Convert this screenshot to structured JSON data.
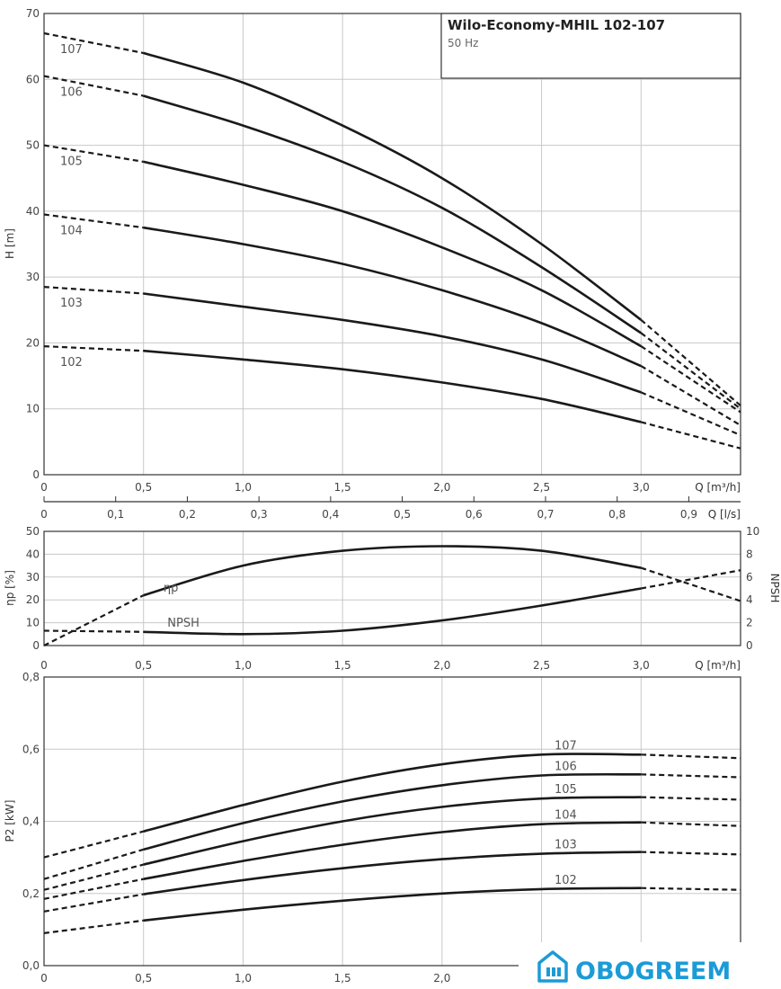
{
  "chart_data": [
    {
      "type": "line",
      "title": "Wilo-Economy-MHIL 102-107",
      "subtitle": "50 Hz",
      "ylabel": "H [m]",
      "xlabel": "Q [m³/h]",
      "xlim": [
        0,
        3.5
      ],
      "ylim": [
        0,
        70
      ],
      "x_ticks": [
        "0",
        "0,5",
        "1,0",
        "1,5",
        "2,0",
        "2,5",
        "3,0"
      ],
      "y_ticks": [
        "0",
        "10",
        "20",
        "30",
        "40",
        "50",
        "60",
        "70"
      ],
      "secondary_x": {
        "label": "Q [l/s]",
        "ticks": [
          "0",
          "0,1",
          "0,2",
          "0,3",
          "0,4",
          "0,5",
          "0,6",
          "0,7",
          "0,8",
          "0,9"
        ],
        "values": [
          0,
          0.1,
          0.2,
          0.3,
          0.4,
          0.5,
          0.6,
          0.7,
          0.8,
          0.9
        ]
      },
      "solid_range": [
        0.5,
        3.0
      ],
      "grid": true,
      "series": [
        {
          "name": "107",
          "x": [
            0,
            0.5,
            1.0,
            1.5,
            2.0,
            2.5,
            3.0,
            3.5
          ],
          "y": [
            67,
            64,
            59.5,
            53,
            45,
            35,
            23.5,
            10.5
          ]
        },
        {
          "name": "106",
          "x": [
            0,
            0.5,
            1.0,
            1.5,
            2.0,
            2.5,
            3.0,
            3.5
          ],
          "y": [
            60.5,
            57.5,
            53,
            47.5,
            40.5,
            31.5,
            21.5,
            10
          ]
        },
        {
          "name": "105",
          "x": [
            0,
            0.5,
            1.0,
            1.5,
            2.0,
            2.5,
            3.0,
            3.5
          ],
          "y": [
            50,
            47.5,
            44,
            40,
            34.5,
            28,
            19.5,
            9.5
          ]
        },
        {
          "name": "104",
          "x": [
            0,
            0.5,
            1.0,
            1.5,
            2.0,
            2.5,
            3.0,
            3.5
          ],
          "y": [
            39.5,
            37.5,
            35,
            32,
            28,
            23,
            16.5,
            7.5
          ]
        },
        {
          "name": "103",
          "x": [
            0,
            0.5,
            1.0,
            1.5,
            2.0,
            2.5,
            3.0,
            3.5
          ],
          "y": [
            28.5,
            27.5,
            25.5,
            23.5,
            21,
            17.5,
            12.5,
            6
          ]
        },
        {
          "name": "102",
          "x": [
            0,
            0.5,
            1.0,
            1.5,
            2.0,
            2.5,
            3.0,
            3.5
          ],
          "y": [
            19.5,
            18.8,
            17.5,
            16,
            14,
            11.5,
            8,
            4
          ]
        }
      ]
    },
    {
      "type": "line",
      "ylabel": "ηp [%]",
      "y2label": "NPSH",
      "xlabel": "Q [m³/h]",
      "xlim": [
        0,
        3.5
      ],
      "ylim": [
        0,
        50
      ],
      "y2lim": [
        0,
        10
      ],
      "x_ticks": [
        "0",
        "0,5",
        "1,0",
        "1,5",
        "2,0",
        "2,5",
        "3,0"
      ],
      "y_ticks": [
        "0",
        "10",
        "20",
        "30",
        "40",
        "50"
      ],
      "y2_ticks": [
        "0",
        "2",
        "4",
        "6",
        "8",
        "10"
      ],
      "solid_range": [
        0.5,
        3.0
      ],
      "grid": true,
      "series": [
        {
          "name": "ηp",
          "axis": "left",
          "x": [
            0,
            0.5,
            1.0,
            1.5,
            2.0,
            2.5,
            3.0,
            3.5
          ],
          "y": [
            0,
            22,
            35,
            41.5,
            43.5,
            41.5,
            34,
            19.5
          ]
        },
        {
          "name": "NPSH",
          "axis": "right",
          "x": [
            0,
            0.5,
            1.0,
            1.5,
            2.0,
            2.5,
            3.0,
            3.5
          ],
          "y": [
            1.3,
            1.2,
            1.0,
            1.3,
            2.2,
            3.5,
            5.0,
            6.6
          ]
        }
      ]
    },
    {
      "type": "line",
      "ylabel": "P2 [kW]",
      "xlim": [
        0,
        3.5
      ],
      "ylim": [
        0,
        0.8
      ],
      "x_ticks": [
        "0",
        "0,5",
        "1,0",
        "1,5",
        "2,0"
      ],
      "y_ticks": [
        "0,0",
        "0,2",
        "0,4",
        "0,6",
        "0,8"
      ],
      "solid_range": [
        0.5,
        3.0
      ],
      "grid": true,
      "series": [
        {
          "name": "107",
          "x": [
            0,
            0.5,
            1.0,
            1.5,
            2.0,
            2.5,
            3.0,
            3.5
          ],
          "y": [
            0.3,
            0.372,
            0.445,
            0.51,
            0.558,
            0.585,
            0.585,
            0.575
          ]
        },
        {
          "name": "106",
          "x": [
            0,
            0.5,
            1.0,
            1.5,
            2.0,
            2.5,
            3.0,
            3.5
          ],
          "y": [
            0.24,
            0.322,
            0.395,
            0.455,
            0.5,
            0.527,
            0.53,
            0.522
          ]
        },
        {
          "name": "105",
          "x": [
            0,
            0.5,
            1.0,
            1.5,
            2.0,
            2.5,
            3.0,
            3.5
          ],
          "y": [
            0.21,
            0.28,
            0.345,
            0.4,
            0.44,
            0.463,
            0.467,
            0.46
          ]
        },
        {
          "name": "104",
          "x": [
            0,
            0.5,
            1.0,
            1.5,
            2.0,
            2.5,
            3.0,
            3.5
          ],
          "y": [
            0.185,
            0.24,
            0.29,
            0.335,
            0.37,
            0.392,
            0.397,
            0.387
          ]
        },
        {
          "name": "103",
          "x": [
            0,
            0.5,
            1.0,
            1.5,
            2.0,
            2.5,
            3.0,
            3.5
          ],
          "y": [
            0.15,
            0.198,
            0.237,
            0.27,
            0.295,
            0.31,
            0.315,
            0.308
          ]
        },
        {
          "name": "102",
          "x": [
            0,
            0.5,
            1.0,
            1.5,
            2.0,
            2.5,
            3.0,
            3.5
          ],
          "y": [
            0.09,
            0.125,
            0.155,
            0.18,
            0.2,
            0.212,
            0.215,
            0.21
          ]
        }
      ]
    }
  ],
  "watermark": {
    "text": "OBOGREEM",
    "icon": "house-icon",
    "color": "#1b9bd7"
  }
}
